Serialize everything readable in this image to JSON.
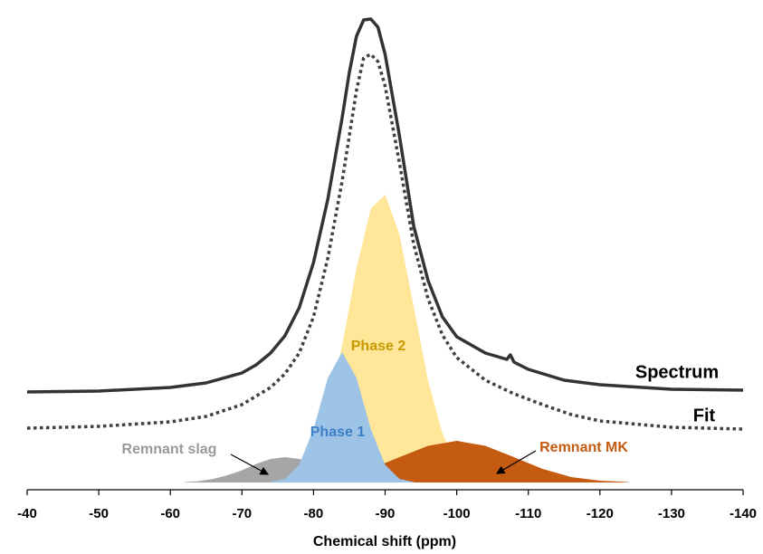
{
  "chart_data": {
    "type": "line",
    "xlabel": "Chemical shift (ppm)",
    "xlim": [
      -40,
      -140
    ],
    "xticks": [
      -40,
      -50,
      -60,
      -70,
      -80,
      -90,
      -100,
      -110,
      -120,
      -130,
      -140
    ],
    "ylim": [
      0,
      105
    ],
    "series": [
      {
        "name": "Spectrum",
        "kind": "line",
        "color": "#333333",
        "label_color": "#000000",
        "x": [
          -40,
          -50,
          -60,
          -65,
          -70,
          -72,
          -74,
          -76,
          -78,
          -80,
          -82,
          -84,
          -85,
          -86,
          -87,
          -88,
          -89,
          -90,
          -92,
          -94,
          -96,
          -98,
          -100,
          -104,
          -107,
          -107.5,
          -108,
          -110,
          -115,
          -120,
          -130,
          -140
        ],
        "values": [
          20,
          20.2,
          21,
          22,
          24.2,
          26,
          28.6,
          32.4,
          38.6,
          48.6,
          62.6,
          80.6,
          90.6,
          98.6,
          102.2,
          102.4,
          100.6,
          94.6,
          76.6,
          56.6,
          44.6,
          36.6,
          32.2,
          28.6,
          27.2,
          28.2,
          26.6,
          25,
          22.6,
          21.6,
          20.6,
          20.4
        ]
      },
      {
        "name": "Fit",
        "kind": "line",
        "dashed": true,
        "color": "#404040",
        "label_color": "#000000",
        "x": [
          -40,
          -50,
          -60,
          -65,
          -70,
          -74,
          -76,
          -78,
          -80,
          -82,
          -84,
          -85,
          -86,
          -87,
          -88,
          -89,
          -90,
          -92,
          -94,
          -96,
          -98,
          -100,
          -104,
          -108,
          -112,
          -116,
          -120,
          -130,
          -140
        ],
        "values": [
          12,
          12.4,
          13.4,
          14.6,
          17.2,
          21,
          24,
          28.6,
          36.6,
          49.6,
          66.6,
          76.6,
          86.6,
          93.8,
          94.6,
          93,
          87.6,
          70.6,
          52.6,
          40.6,
          32.6,
          27.6,
          22.6,
          19.6,
          17.2,
          15,
          13.6,
          12.2,
          11.8
        ]
      },
      {
        "name": "Remnant slag",
        "kind": "area",
        "color": "#a6a6a6",
        "label_color": "#999999",
        "x": [
          -62,
          -64,
          -66,
          -68,
          -70,
          -72,
          -74,
          -76,
          -78,
          -80,
          -82,
          -84,
          -86,
          -88,
          -90
        ],
        "values": [
          0.1,
          0.3,
          0.8,
          1.6,
          2.7,
          4.1,
          5.2,
          5.6,
          5.2,
          4.1,
          2.7,
          1.6,
          0.8,
          0.3,
          0.1
        ]
      },
      {
        "name": "Phase 2",
        "kind": "area",
        "color": "#ffe699",
        "label_color": "#c89a00",
        "x": [
          -76,
          -78,
          -80,
          -82,
          -84,
          -86,
          -88,
          -90,
          -92,
          -94,
          -96,
          -98,
          -100,
          -102,
          -104
        ],
        "values": [
          0.7,
          2.4,
          6.9,
          15.9,
          30.3,
          47.3,
          60.5,
          63.6,
          54.8,
          38.8,
          22.5,
          10.8,
          4.2,
          1.4,
          0.4
        ]
      },
      {
        "name": "Remnant MK",
        "kind": "area",
        "color": "#c55a11",
        "label_color": "#c55a11",
        "x": [
          -76,
          -80,
          -84,
          -88,
          -92,
          -96,
          -100,
          -104,
          -108,
          -112,
          -116,
          -120,
          -124
        ],
        "values": [
          0.1,
          0.4,
          1.2,
          3.0,
          5.6,
          8.1,
          9.2,
          8.1,
          5.6,
          3.0,
          1.2,
          0.4,
          0.1
        ]
      },
      {
        "name": "Phase 1",
        "kind": "area",
        "color": "#9dc3e6",
        "label_color": "#3d7fc4",
        "x": [
          -74,
          -76,
          -78,
          -80,
          -82,
          -84,
          -86,
          -88,
          -90,
          -92,
          -94
        ],
        "values": [
          0.1,
          0.8,
          3.9,
          11.8,
          23.1,
          28.8,
          23.1,
          11.8,
          3.9,
          0.8,
          0.1
        ]
      }
    ]
  }
}
